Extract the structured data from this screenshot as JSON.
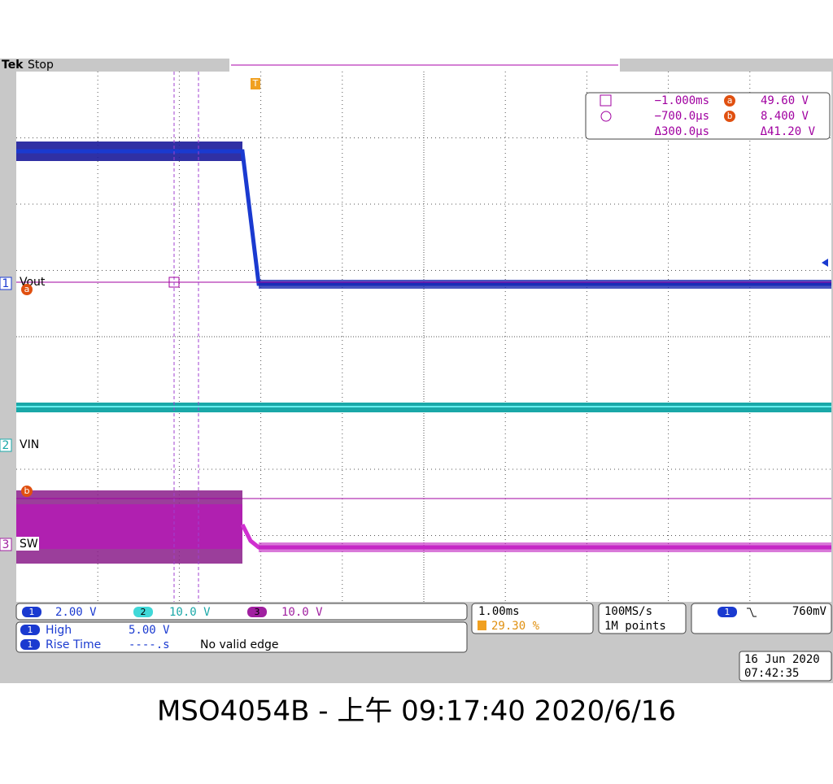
{
  "header": {
    "brand": "Tek",
    "status": "Stop"
  },
  "cursors": {
    "rows": [
      [
        "−1.000ms",
        "a",
        "49.60 V"
      ],
      [
        "−700.0µs",
        "b",
        "8.400 V"
      ],
      [
        "Δ300.0µs",
        "Δ41.20 V"
      ]
    ]
  },
  "channels": [
    {
      "number": "1",
      "label": "Vout",
      "cursor": "a"
    },
    {
      "number": "2",
      "label": "VIN"
    },
    {
      "number": "3",
      "label": "SW",
      "cursor": "b"
    }
  ],
  "trigger_marker": "T",
  "scales": [
    {
      "number": "1",
      "value": "2.00 V"
    },
    {
      "number": "2",
      "value": "10.0 V"
    },
    {
      "number": "3",
      "value": "10.0 V"
    }
  ],
  "measurements": [
    {
      "channel": "1",
      "name": "High",
      "value": "5.00 V"
    },
    {
      "channel": "1",
      "name": "Rise Time",
      "value": "----.s",
      "note": "No valid edge"
    }
  ],
  "timebase": {
    "scale": "1.00ms",
    "position": "29.30 %"
  },
  "acquisition": {
    "rate": "100MS/s",
    "length": "1M points"
  },
  "trigger": {
    "channel": "1",
    "level": "760mV"
  },
  "datetime": {
    "date": "16 Jun 2020",
    "time": "07:42:35"
  },
  "caption": "MSO4054B - 上午 09:17:40   2020/6/16"
}
